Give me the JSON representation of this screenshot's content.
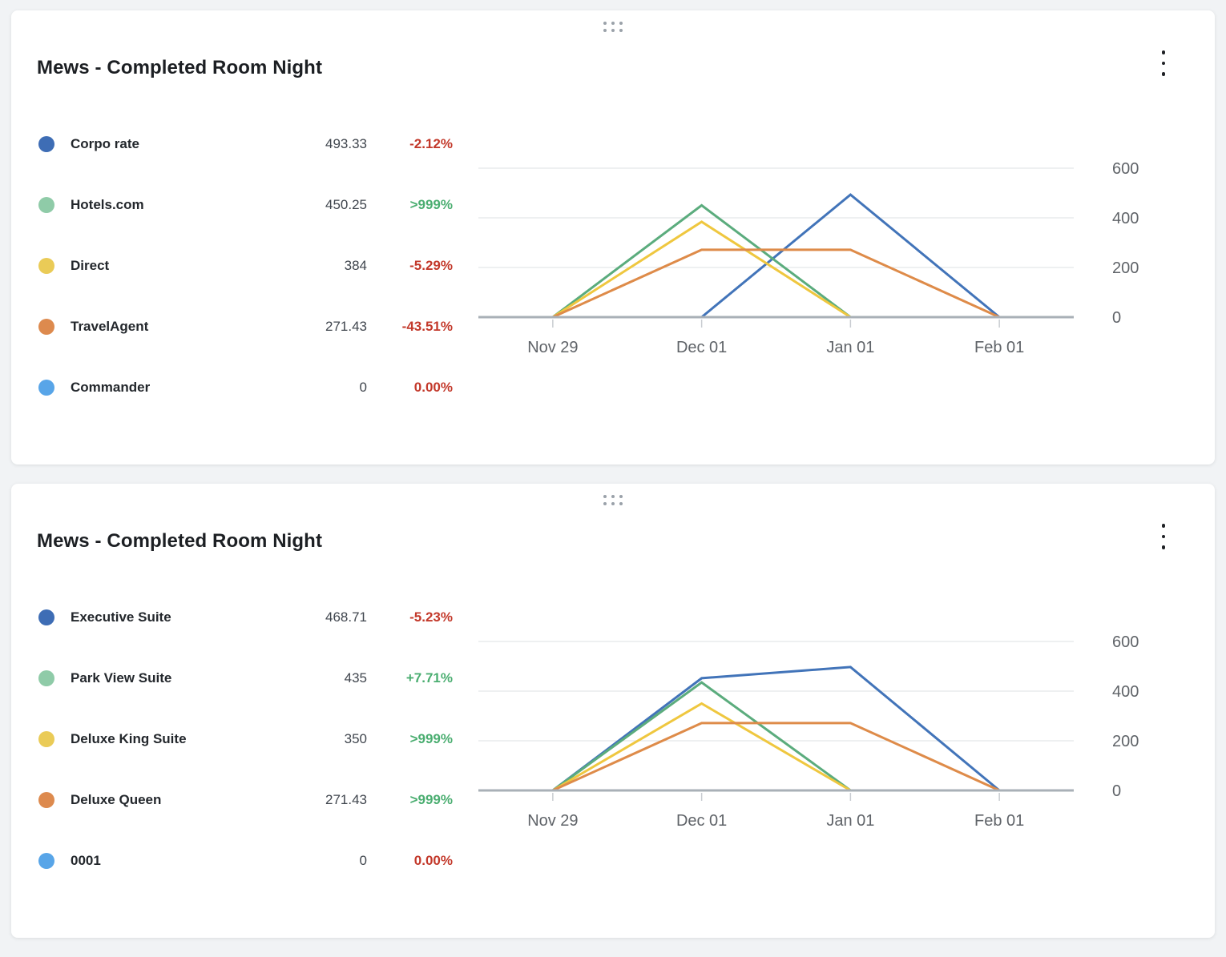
{
  "page": {
    "background": "#F1F3F5"
  },
  "colors": {
    "positive": "#4BAE71",
    "negative": "#C3392B",
    "title_text": "#1C1F23",
    "label_text": "#23272C",
    "value_text": "#40464E"
  },
  "chart_style": {
    "grid_color": "#DCE0E3",
    "axis_color": "#A9B0B7",
    "tick_color": "#C8CCD1",
    "label_color": "#5F6368",
    "line_width": 3
  },
  "cards": [
    {
      "title": "Mews - Completed Room Night",
      "menu_icon": "kebab-menu",
      "drag_icon": "drag-handle-dots",
      "legend": [
        {
          "name": "Corpo rate",
          "value": "493.33",
          "change": "-2.12%",
          "trend": "down",
          "dot_color": "#3E6DB5",
          "line_color": "#4274B9"
        },
        {
          "name": "Hotels.com",
          "value": "450.25",
          "change": ">999%",
          "trend": "up",
          "dot_color": "#8FCBA8",
          "line_color": "#5BAC7D"
        },
        {
          "name": "Direct",
          "value": "384",
          "change": "-5.29%",
          "trend": "down",
          "dot_color": "#EACB57",
          "line_color": "#EFC73F"
        },
        {
          "name": "TravelAgent",
          "value": "271.43",
          "change": "-43.51%",
          "trend": "down",
          "dot_color": "#DD8A4E",
          "line_color": "#DE8B49"
        },
        {
          "name": "Commander",
          "value": "0",
          "change": "0.00%",
          "trend": "down",
          "dot_color": "#58A5E8",
          "line_color": "#58A5E8"
        }
      ],
      "chart_data": {
        "type": "line",
        "x_labels": [
          "Nov 29",
          "Dec 01",
          "Jan 01",
          "Feb 01"
        ],
        "y_ticks": [
          600,
          400,
          200,
          0
        ],
        "ylim": [
          0,
          650
        ],
        "legend_position": "left",
        "grid": true,
        "series": [
          {
            "name": "Corpo rate",
            "color": "#4274B9",
            "values": [
              null,
              0,
              493.33,
              0
            ]
          },
          {
            "name": "Hotels.com",
            "color": "#5BAC7D",
            "values": [
              0,
              450.25,
              0,
              null
            ]
          },
          {
            "name": "Direct",
            "color": "#EFC73F",
            "values": [
              0,
              384,
              0,
              null
            ]
          },
          {
            "name": "TravelAgent",
            "color": "#DE8B49",
            "values": [
              0,
              271.43,
              271.43,
              0
            ]
          },
          {
            "name": "Commander",
            "color": "#58A5E8",
            "values": [
              0,
              0,
              0,
              0
            ]
          }
        ]
      }
    },
    {
      "title": "Mews - Completed Room Night",
      "menu_icon": "kebab-menu",
      "drag_icon": "drag-handle-dots",
      "legend": [
        {
          "name": "Executive Suite",
          "value": "468.71",
          "change": "-5.23%",
          "trend": "down",
          "dot_color": "#3E6DB5",
          "line_color": "#4274B9"
        },
        {
          "name": "Park View Suite",
          "value": "435",
          "change": "+7.71%",
          "trend": "up",
          "dot_color": "#8FCBA8",
          "line_color": "#5BAC7D"
        },
        {
          "name": "Deluxe King Suite",
          "value": "350",
          "change": ">999%",
          "trend": "up",
          "dot_color": "#EACB57",
          "line_color": "#EFC73F"
        },
        {
          "name": "Deluxe Queen",
          "value": "271.43",
          "change": ">999%",
          "trend": "up",
          "dot_color": "#DD8A4E",
          "line_color": "#DE8B49"
        },
        {
          "name": "0001",
          "value": "0",
          "change": "0.00%",
          "trend": "down",
          "dot_color": "#58A5E8",
          "line_color": "#58A5E8"
        }
      ],
      "chart_data": {
        "type": "line",
        "x_labels": [
          "Nov 29",
          "Dec 01",
          "Jan 01",
          "Feb 01"
        ],
        "y_ticks": [
          600,
          400,
          200,
          0
        ],
        "ylim": [
          0,
          650
        ],
        "legend_position": "left",
        "grid": true,
        "series": [
          {
            "name": "Executive Suite",
            "color": "#4274B9",
            "values": [
              0,
              452,
              497,
              0
            ]
          },
          {
            "name": "Park View Suite",
            "color": "#5BAC7D",
            "values": [
              0,
              435,
              0,
              null
            ]
          },
          {
            "name": "Deluxe King Suite",
            "color": "#EFC73F",
            "values": [
              0,
              350,
              0,
              null
            ]
          },
          {
            "name": "Deluxe Queen",
            "color": "#DE8B49",
            "values": [
              0,
              271.43,
              271.43,
              0
            ]
          },
          {
            "name": "0001",
            "color": "#58A5E8",
            "values": [
              0,
              0,
              0,
              0
            ]
          }
        ]
      }
    }
  ]
}
